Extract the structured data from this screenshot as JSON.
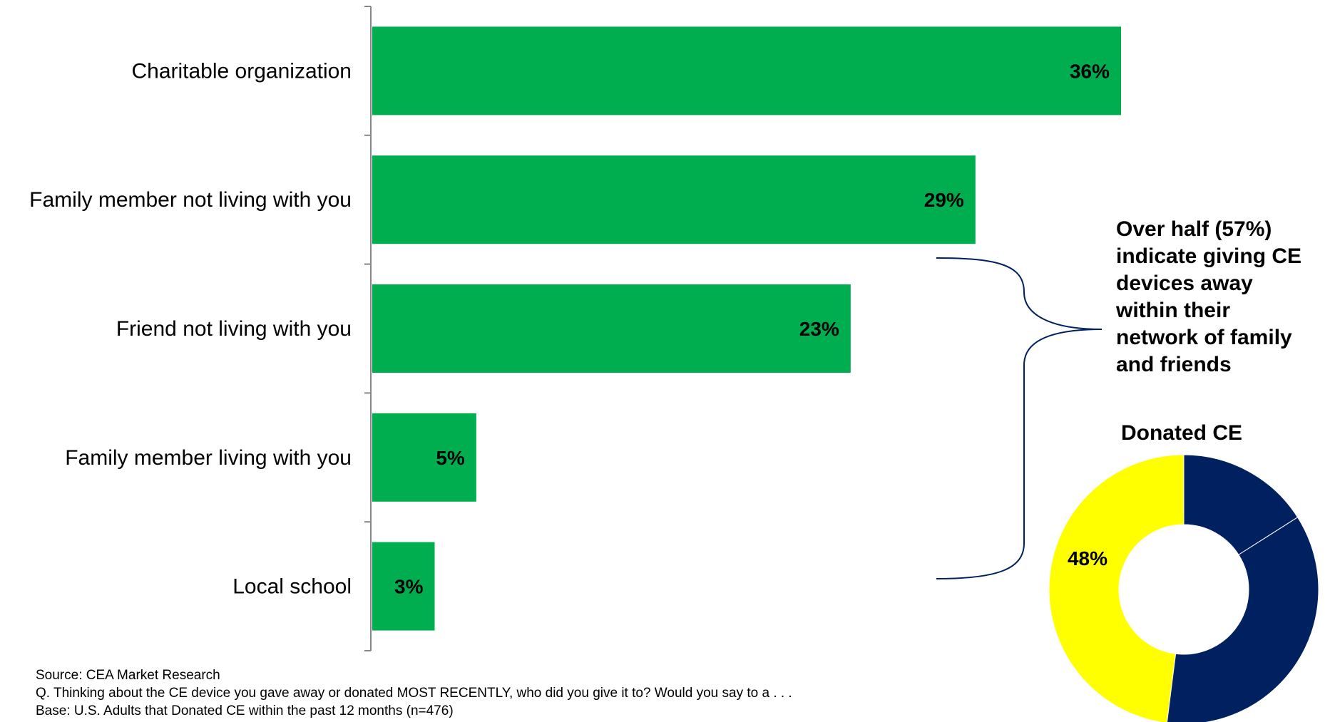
{
  "chart_data": [
    {
      "type": "bar",
      "orientation": "horizontal",
      "categories": [
        "Charitable organization",
        "Family member not living with you",
        "Friend not living with you",
        "Family member living with you",
        "Local school"
      ],
      "values": [
        36,
        29,
        23,
        5,
        3
      ],
      "value_labels": [
        "36%",
        "29%",
        "23%",
        "5%",
        "3%"
      ],
      "unit": "%",
      "xlim": [
        0,
        36
      ],
      "bar_color": "#00AE4F",
      "grid": false,
      "legend": false
    },
    {
      "type": "pie",
      "donut": true,
      "title": "Donated CE",
      "slices": [
        {
          "value": 48,
          "label": "48%",
          "color": "#FFFF00"
        },
        {
          "value": 36,
          "label": "",
          "color": "#002060"
        },
        {
          "value": 16,
          "label": "",
          "color": "#002060"
        }
      ]
    }
  ],
  "annotation": {
    "callout_lines": [
      "Over half (57%)",
      "indicate giving CE",
      "devices away",
      "within their",
      "network of family",
      "and friends"
    ],
    "bracket_color": "#002060"
  },
  "footnotes": {
    "source": "Source: CEA Market Research",
    "question": "Q. Thinking about the CE device you gave away or donated MOST RECENTLY, who did you give it to?  Would you say to a . . .",
    "base": "Base: U.S. Adults that Donated CE within the past 12 months (n=476)"
  }
}
